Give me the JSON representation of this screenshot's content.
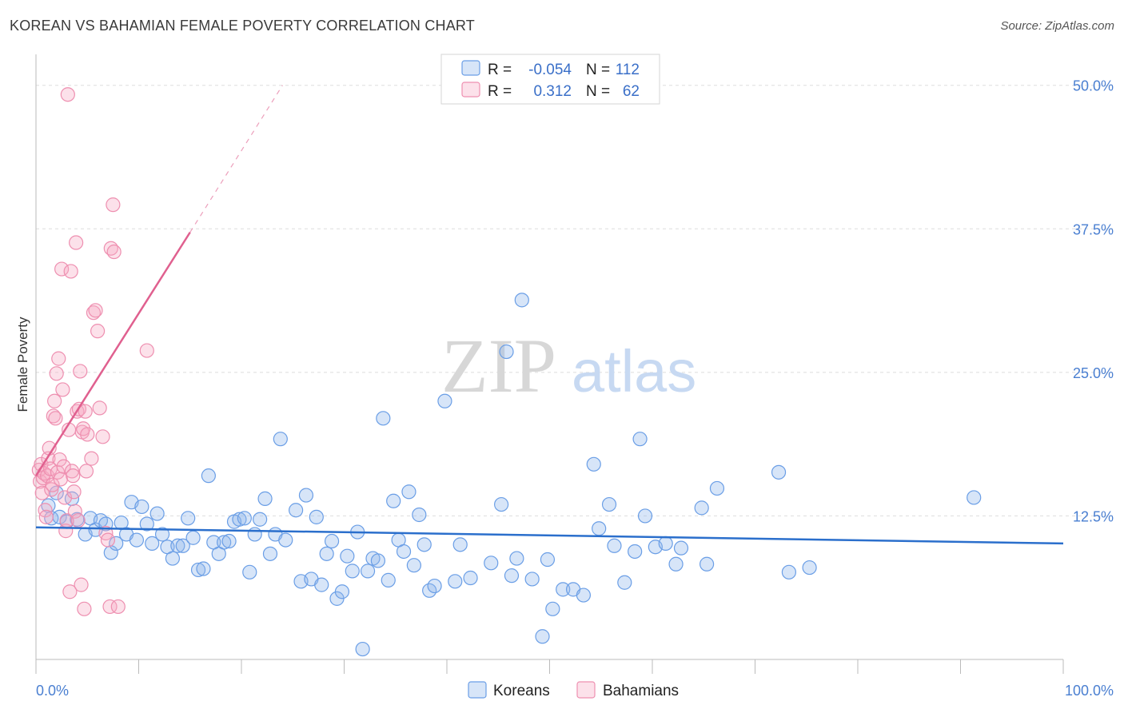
{
  "title": "KOREAN VS BAHAMIAN FEMALE POVERTY CORRELATION CHART",
  "source": "Source: ZipAtlas.com",
  "watermark": {
    "zip": "ZIP",
    "atlas": "atlas"
  },
  "colors": {
    "korean": "#6a9ee6",
    "korean_fill": "rgba(140,180,235,0.35)",
    "korean_line": "#2b6fcc",
    "bahamian": "#ee8fb0",
    "bahamian_fill": "rgba(245,170,195,0.35)",
    "bahamian_line": "#e0608f",
    "grid": "#dddddd",
    "axis_label": "#4a7fd1"
  },
  "legend_box": {
    "rows": [
      {
        "r_label": "R =",
        "r_value": "-0.054",
        "n_label": "N =",
        "n_value": "112",
        "series": "korean"
      },
      {
        "r_label": "R =",
        "r_value": "0.312",
        "n_label": "N =",
        "n_value": "62",
        "series": "bahamian"
      }
    ]
  },
  "bottom_legend": [
    {
      "label": "Koreans",
      "series": "korean"
    },
    {
      "label": "Bahamians",
      "series": "bahamian"
    }
  ],
  "chart_data": {
    "type": "scatter",
    "xlabel": "",
    "ylabel": "Female Poverty",
    "xlim": [
      0,
      100
    ],
    "ylim": [
      0,
      52
    ],
    "x_tick_labels": [
      {
        "value": 0,
        "label": "0.0%"
      },
      {
        "value": 100,
        "label": "100.0%"
      }
    ],
    "y_tick_labels": [
      {
        "value": 12.5,
        "label": "12.5%"
      },
      {
        "value": 25.0,
        "label": "25.0%"
      },
      {
        "value": 37.5,
        "label": "37.5%"
      },
      {
        "value": 50.0,
        "label": "50.0%"
      }
    ],
    "grid": true,
    "series": [
      {
        "name": "Koreans",
        "r": -0.054,
        "n": 112,
        "trend": {
          "x0": 0,
          "y0": 11.5,
          "x1": 100,
          "y1": 10.1
        },
        "points": [
          [
            1.2,
            13.4
          ],
          [
            1.5,
            12.3
          ],
          [
            2.0,
            14.5
          ],
          [
            2.3,
            12.4
          ],
          [
            3.0,
            12.0
          ],
          [
            3.5,
            14.0
          ],
          [
            4.0,
            12.2
          ],
          [
            4.8,
            10.9
          ],
          [
            5.3,
            12.3
          ],
          [
            5.8,
            11.3
          ],
          [
            6.3,
            12.1
          ],
          [
            6.8,
            11.8
          ],
          [
            7.3,
            9.3
          ],
          [
            7.8,
            10.1
          ],
          [
            8.3,
            11.9
          ],
          [
            8.8,
            10.9
          ],
          [
            9.3,
            13.7
          ],
          [
            9.8,
            10.4
          ],
          [
            10.3,
            13.3
          ],
          [
            10.8,
            11.8
          ],
          [
            11.3,
            10.1
          ],
          [
            11.8,
            12.7
          ],
          [
            12.3,
            10.9
          ],
          [
            12.8,
            9.8
          ],
          [
            13.3,
            8.8
          ],
          [
            13.8,
            9.9
          ],
          [
            14.3,
            9.9
          ],
          [
            14.8,
            12.3
          ],
          [
            15.3,
            10.6
          ],
          [
            15.8,
            7.8
          ],
          [
            16.3,
            7.9
          ],
          [
            16.8,
            16.0
          ],
          [
            17.3,
            10.2
          ],
          [
            17.8,
            9.2
          ],
          [
            18.3,
            10.2
          ],
          [
            18.8,
            10.3
          ],
          [
            19.3,
            12.0
          ],
          [
            19.8,
            12.2
          ],
          [
            20.3,
            12.3
          ],
          [
            20.8,
            7.6
          ],
          [
            21.3,
            10.9
          ],
          [
            21.8,
            12.2
          ],
          [
            22.3,
            14.0
          ],
          [
            22.8,
            9.2
          ],
          [
            23.3,
            10.9
          ],
          [
            23.8,
            19.2
          ],
          [
            24.3,
            10.4
          ],
          [
            25.3,
            13.0
          ],
          [
            25.8,
            6.8
          ],
          [
            26.3,
            14.3
          ],
          [
            26.8,
            7.0
          ],
          [
            27.3,
            12.4
          ],
          [
            27.8,
            6.5
          ],
          [
            28.3,
            9.2
          ],
          [
            28.8,
            10.3
          ],
          [
            29.3,
            5.3
          ],
          [
            29.8,
            5.9
          ],
          [
            30.3,
            9.0
          ],
          [
            30.8,
            7.7
          ],
          [
            31.3,
            11.1
          ],
          [
            31.8,
            0.9
          ],
          [
            32.3,
            7.7
          ],
          [
            32.8,
            8.8
          ],
          [
            33.3,
            8.6
          ],
          [
            33.8,
            21.0
          ],
          [
            34.3,
            6.9
          ],
          [
            34.8,
            13.8
          ],
          [
            35.3,
            10.4
          ],
          [
            35.8,
            9.4
          ],
          [
            36.3,
            14.6
          ],
          [
            36.8,
            8.2
          ],
          [
            37.3,
            12.6
          ],
          [
            37.8,
            10.0
          ],
          [
            38.3,
            6.0
          ],
          [
            38.8,
            6.4
          ],
          [
            39.8,
            22.5
          ],
          [
            40.8,
            6.8
          ],
          [
            41.3,
            10.0
          ],
          [
            42.3,
            7.1
          ],
          [
            44.3,
            8.4
          ],
          [
            45.3,
            13.5
          ],
          [
            45.8,
            26.8
          ],
          [
            46.3,
            7.3
          ],
          [
            46.8,
            8.8
          ],
          [
            47.3,
            31.3
          ],
          [
            48.3,
            7.0
          ],
          [
            49.3,
            2.0
          ],
          [
            49.8,
            8.7
          ],
          [
            50.3,
            4.4
          ],
          [
            51.3,
            6.1
          ],
          [
            52.3,
            6.1
          ],
          [
            53.3,
            5.6
          ],
          [
            54.3,
            17.0
          ],
          [
            54.8,
            11.4
          ],
          [
            55.8,
            13.5
          ],
          [
            56.3,
            9.9
          ],
          [
            57.3,
            6.7
          ],
          [
            58.3,
            9.4
          ],
          [
            58.8,
            19.2
          ],
          [
            59.3,
            12.5
          ],
          [
            60.3,
            9.8
          ],
          [
            61.3,
            10.1
          ],
          [
            62.3,
            8.3
          ],
          [
            62.8,
            9.7
          ],
          [
            64.8,
            13.2
          ],
          [
            65.3,
            8.3
          ],
          [
            66.3,
            14.9
          ],
          [
            72.3,
            16.3
          ],
          [
            73.3,
            7.6
          ],
          [
            75.3,
            8.0
          ],
          [
            91.3,
            14.1
          ]
        ]
      },
      {
        "name": "Bahamians",
        "r": 0.312,
        "n": 62,
        "trend": {
          "x0": 0,
          "y0": 16.0,
          "x1": 15,
          "y1": 37.2,
          "dash_to_x": 24,
          "dash_to_y": 50.0
        },
        "points": [
          [
            0.3,
            16.5
          ],
          [
            0.4,
            15.5
          ],
          [
            0.5,
            17.0
          ],
          [
            0.6,
            14.5
          ],
          [
            0.7,
            15.8
          ],
          [
            0.8,
            16.2
          ],
          [
            0.9,
            13.0
          ],
          [
            1.0,
            12.4
          ],
          [
            1.1,
            16.0
          ],
          [
            1.2,
            17.5
          ],
          [
            1.3,
            18.4
          ],
          [
            1.4,
            16.6
          ],
          [
            1.5,
            14.8
          ],
          [
            1.6,
            15.2
          ],
          [
            1.7,
            21.2
          ],
          [
            1.8,
            22.5
          ],
          [
            1.9,
            21.0
          ],
          [
            2.0,
            24.9
          ],
          [
            2.1,
            16.3
          ],
          [
            2.2,
            26.2
          ],
          [
            2.3,
            17.4
          ],
          [
            2.4,
            15.7
          ],
          [
            2.5,
            34.0
          ],
          [
            2.6,
            23.5
          ],
          [
            2.7,
            16.8
          ],
          [
            2.8,
            14.1
          ],
          [
            2.9,
            11.2
          ],
          [
            3.0,
            12.1
          ],
          [
            3.1,
            49.2
          ],
          [
            3.2,
            20.0
          ],
          [
            3.3,
            5.9
          ],
          [
            3.4,
            33.8
          ],
          [
            3.5,
            16.4
          ],
          [
            3.6,
            16.0
          ],
          [
            3.7,
            14.6
          ],
          [
            3.8,
            12.9
          ],
          [
            3.9,
            36.3
          ],
          [
            4.0,
            21.6
          ],
          [
            4.1,
            12.1
          ],
          [
            4.2,
            21.8
          ],
          [
            4.3,
            25.1
          ],
          [
            4.4,
            6.5
          ],
          [
            4.5,
            19.8
          ],
          [
            4.6,
            20.1
          ],
          [
            4.7,
            4.4
          ],
          [
            4.8,
            21.6
          ],
          [
            4.9,
            16.4
          ],
          [
            5.0,
            19.6
          ],
          [
            5.4,
            17.5
          ],
          [
            5.6,
            30.2
          ],
          [
            5.8,
            30.4
          ],
          [
            6.0,
            28.6
          ],
          [
            6.2,
            21.9
          ],
          [
            6.5,
            19.4
          ],
          [
            6.8,
            11.0
          ],
          [
            7.0,
            10.4
          ],
          [
            7.2,
            4.6
          ],
          [
            7.3,
            35.8
          ],
          [
            7.5,
            39.6
          ],
          [
            7.6,
            35.5
          ],
          [
            8.0,
            4.6
          ],
          [
            10.8,
            26.9
          ]
        ]
      }
    ]
  }
}
